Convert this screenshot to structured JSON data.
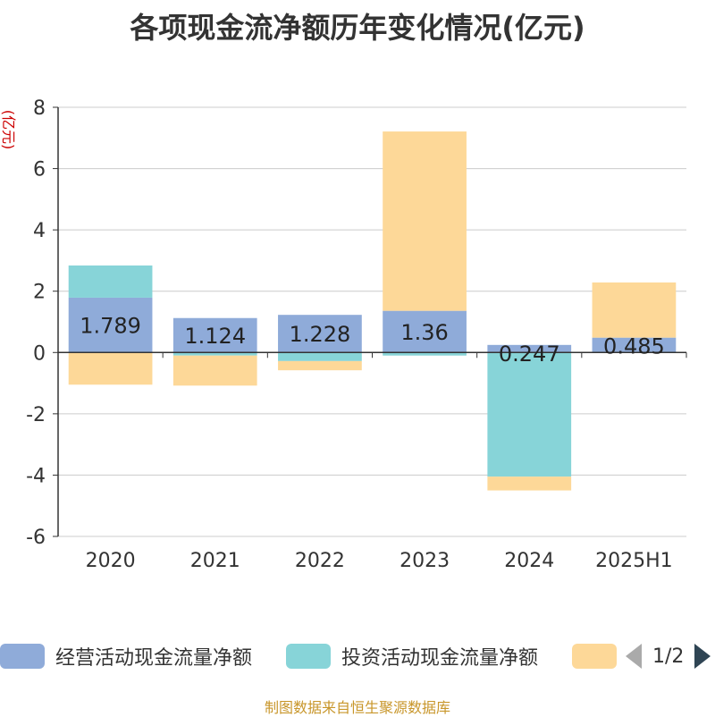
{
  "chart_data": {
    "type": "bar",
    "stacked": true,
    "title": "各项现金流净额历年变化情况(亿元)",
    "ylabel": "(亿元)",
    "categories": [
      "2020",
      "2021",
      "2022",
      "2023",
      "2024",
      "2025H1"
    ],
    "ylim": [
      -6,
      8
    ],
    "yticks": [
      -6,
      -4,
      -2,
      0,
      2,
      4,
      6,
      8
    ],
    "grid": true,
    "legend_position": "bottom",
    "series": [
      {
        "name": "经营活动现金流量净额",
        "color": "#8fabd9",
        "values": [
          1.789,
          1.124,
          1.228,
          1.36,
          0.247,
          0.485
        ],
        "labels": [
          "1.789",
          "1.124",
          "1.228",
          "1.36",
          "0.247",
          "0.485"
        ]
      },
      {
        "name": "投资活动现金流量净额",
        "color": "#87d4d8",
        "values": [
          1.05,
          -0.1,
          -0.28,
          -0.1,
          -4.05,
          0.0
        ]
      },
      {
        "name": "",
        "color": "#fdd898",
        "values": [
          -1.05,
          -0.98,
          -0.3,
          5.85,
          -0.45,
          1.8
        ]
      }
    ]
  },
  "legend": {
    "page_text": "1/2"
  },
  "source": "制图数据来自恒生聚源数据库"
}
